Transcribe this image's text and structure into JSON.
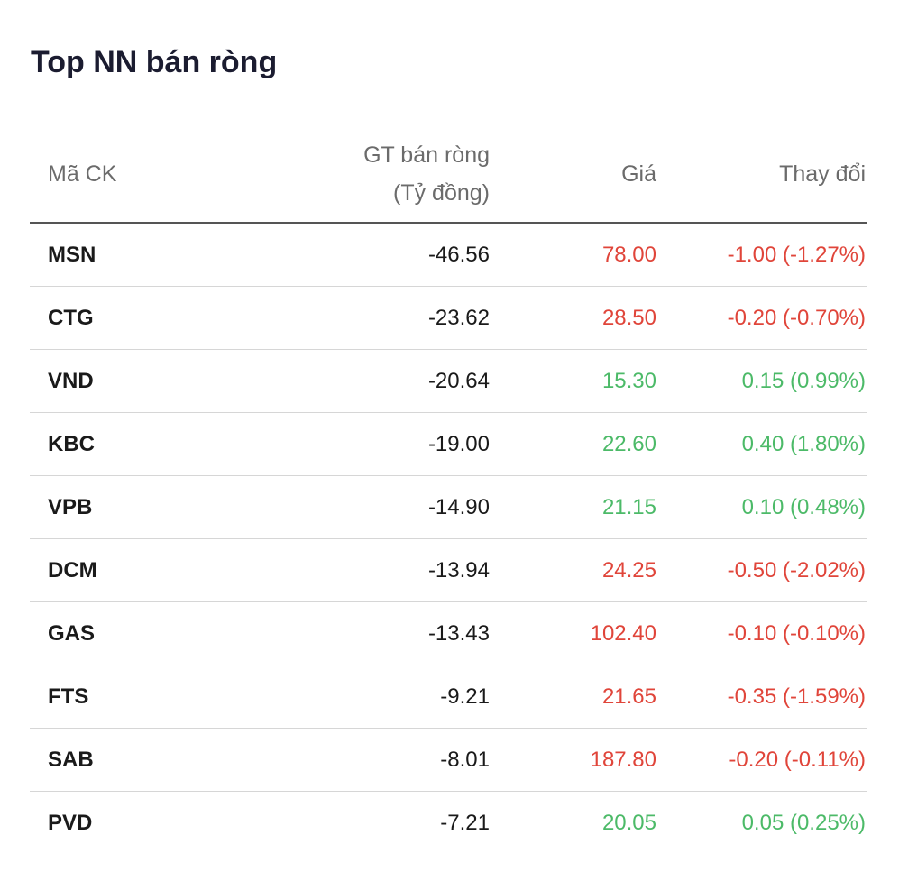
{
  "title": "Top NN bán ròng",
  "headers": {
    "code": "Mã CK",
    "value_line1": "GT bán ròng",
    "value_line2": "(Tỷ đồng)",
    "price": "Giá",
    "change": "Thay đổi"
  },
  "colors": {
    "up": "#4cba68",
    "down": "#e0453a"
  },
  "rows": [
    {
      "code": "MSN",
      "value": "-46.56",
      "price": "78.00",
      "change": "-1.00 (-1.27%)",
      "trend": "down"
    },
    {
      "code": "CTG",
      "value": "-23.62",
      "price": "28.50",
      "change": "-0.20 (-0.70%)",
      "trend": "down"
    },
    {
      "code": "VND",
      "value": "-20.64",
      "price": "15.30",
      "change": "0.15 (0.99%)",
      "trend": "up"
    },
    {
      "code": "KBC",
      "value": "-19.00",
      "price": "22.60",
      "change": "0.40 (1.80%)",
      "trend": "up"
    },
    {
      "code": "VPB",
      "value": "-14.90",
      "price": "21.15",
      "change": "0.10 (0.48%)",
      "trend": "up"
    },
    {
      "code": "DCM",
      "value": "-13.94",
      "price": "24.25",
      "change": "-0.50 (-2.02%)",
      "trend": "down"
    },
    {
      "code": "GAS",
      "value": "-13.43",
      "price": "102.40",
      "change": "-0.10 (-0.10%)",
      "trend": "down"
    },
    {
      "code": "FTS",
      "value": "-9.21",
      "price": "21.65",
      "change": "-0.35 (-1.59%)",
      "trend": "down"
    },
    {
      "code": "SAB",
      "value": "-8.01",
      "price": "187.80",
      "change": "-0.20 (-0.11%)",
      "trend": "down"
    },
    {
      "code": "PVD",
      "value": "-7.21",
      "price": "20.05",
      "change": "0.05 (0.25%)",
      "trend": "up"
    }
  ]
}
